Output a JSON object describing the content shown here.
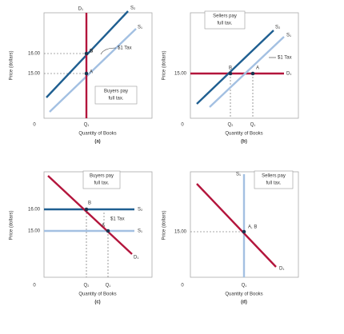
{
  "panels": [
    {
      "id": "(a)",
      "x_label": "Quantity of Books",
      "y_label": "Price (dollars)",
      "origin": "0",
      "q_labels": [
        "Q₁"
      ],
      "price_labels": [
        "16.00",
        "15.00"
      ],
      "curves": [
        "D₁",
        "S₂",
        "S₁"
      ],
      "points": [
        "B",
        "A"
      ],
      "tax_label": "$1 Tax",
      "note": [
        "Buyers pay",
        "full tax."
      ]
    },
    {
      "id": "(b)",
      "x_label": "Quantity of Books",
      "y_label": "Price (dollars)",
      "origin": "0",
      "q_labels": [
        "Q₂",
        "Q₁"
      ],
      "price_labels": [
        "15.00"
      ],
      "curves": [
        "D₁",
        "S₂",
        "S₁"
      ],
      "points": [
        "B",
        "A"
      ],
      "tax_label": "$1 Tax",
      "note": [
        "Sellers pay",
        "full tax."
      ]
    },
    {
      "id": "(c)",
      "x_label": "Quantity of Books",
      "y_label": "Price (dollars)",
      "origin": "0",
      "q_labels": [
        "Q₂",
        "Q₁"
      ],
      "price_labels": [
        "16.00",
        "15.00"
      ],
      "curves": [
        "D₁",
        "S₂",
        "S₁"
      ],
      "points": [
        "B",
        "A"
      ],
      "tax_label": "$1 Tax",
      "note": [
        "Buyers pay",
        "full tax."
      ]
    },
    {
      "id": "(d)",
      "x_label": "Quantity of Books",
      "y_label": "Price (dollars)",
      "origin": "0",
      "q_labels": [
        "Q₁"
      ],
      "price_labels": [
        "15.00"
      ],
      "curves": [
        "D₁",
        "S₁"
      ],
      "points": [
        "A, B"
      ],
      "note": [
        "Sellers pay",
        "full tax."
      ]
    }
  ]
}
